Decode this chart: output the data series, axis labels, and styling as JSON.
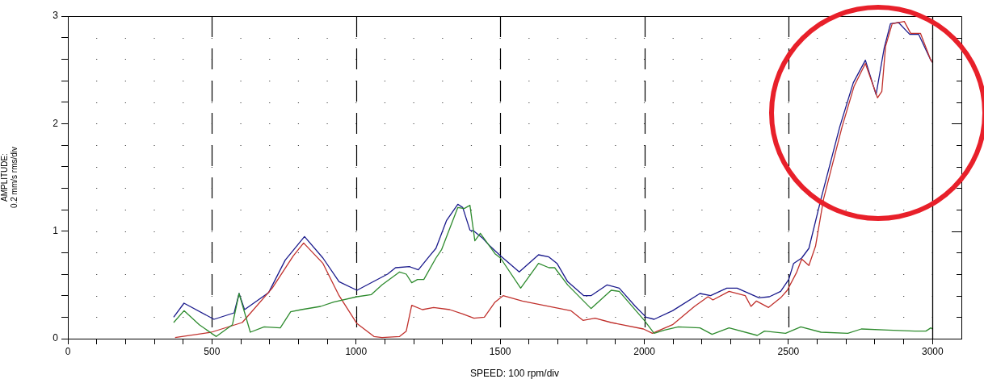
{
  "chart_data": {
    "type": "line",
    "xlabel": "SPEED: 100 rpm/div",
    "ylabel": "AMPLITUDE:\n0.2 mm/s rms/div",
    "xlim": [
      0,
      3100
    ],
    "ylim": [
      0,
      3
    ],
    "xticks": [
      0,
      {
        "value": 100,
        "label": null
      },
      {
        "value": 200,
        "label": null
      },
      {
        "value": 300,
        "label": null
      },
      {
        "value": 400,
        "label": null
      },
      500,
      {
        "value": 600,
        "label": null
      },
      {
        "value": 700,
        "label": null
      },
      {
        "value": 800,
        "label": null
      },
      {
        "value": 900,
        "label": null
      },
      1000,
      {
        "value": 1100,
        "label": null
      },
      {
        "value": 1200,
        "label": null
      },
      {
        "value": 1300,
        "label": null
      },
      {
        "value": 1400,
        "label": null
      },
      1500,
      {
        "value": 1600,
        "label": null
      },
      {
        "value": 1700,
        "label": null
      },
      {
        "value": 1800,
        "label": null
      },
      {
        "value": 1900,
        "label": null
      },
      2000,
      {
        "value": 2100,
        "label": null
      },
      {
        "value": 2200,
        "label": null
      },
      {
        "value": 2300,
        "label": null
      },
      {
        "value": 2400,
        "label": null
      },
      2500,
      {
        "value": 2600,
        "label": null
      },
      {
        "value": 2700,
        "label": null
      },
      {
        "value": 2800,
        "label": null
      },
      {
        "value": 2900,
        "label": null
      },
      3000
    ],
    "yticks": [
      0,
      {
        "value": 0.2,
        "label": null
      },
      {
        "value": 0.4,
        "label": null
      },
      {
        "value": 0.6,
        "label": null
      },
      {
        "value": 0.8,
        "label": null
      },
      1,
      {
        "value": 1.2,
        "label": null
      },
      {
        "value": 1.4,
        "label": null
      },
      {
        "value": 1.6,
        "label": null
      },
      {
        "value": 1.8,
        "label": null
      },
      2,
      {
        "value": 2.2,
        "label": null
      },
      {
        "value": 2.4,
        "label": null
      },
      {
        "value": 2.6,
        "label": null
      },
      {
        "value": 2.8,
        "label": null
      },
      3
    ],
    "grid": true,
    "ref_lines": [
      {
        "axis": "x",
        "value": 3000,
        "color": "#000000",
        "line_style": "solid"
      }
    ],
    "series": [
      {
        "color": "#2e8b2e",
        "x": [
          367,
          403,
          456,
          498,
          515,
          571,
          594,
          633,
          681,
          737,
          773,
          810,
          877,
          922,
          1003,
          1053,
          1090,
          1151,
          1174,
          1193,
          1213,
          1235,
          1277,
          1297,
          1353,
          1375,
          1395,
          1412,
          1431,
          1482,
          1501,
          1571,
          1633,
          1669,
          1689,
          1734,
          1815,
          1885,
          1913,
          2000,
          2034,
          2070,
          2118,
          2193,
          2235,
          2294,
          2392,
          2417,
          2490,
          2543,
          2613,
          2706,
          2753,
          2846,
          2938,
          2977,
          2994,
          3000
        ],
        "values": [
          0.15,
          0.26,
          0.13,
          0.05,
          0.02,
          0.13,
          0.42,
          0.06,
          0.11,
          0.1,
          0.25,
          0.27,
          0.3,
          0.34,
          0.39,
          0.41,
          0.5,
          0.62,
          0.6,
          0.52,
          0.55,
          0.55,
          0.75,
          0.83,
          1.22,
          1.21,
          1.24,
          0.91,
          0.98,
          0.79,
          0.75,
          0.47,
          0.7,
          0.66,
          0.66,
          0.5,
          0.28,
          0.45,
          0.44,
          0.17,
          0.05,
          0.08,
          0.11,
          0.1,
          0.04,
          0.1,
          0.03,
          0.07,
          0.05,
          0.11,
          0.06,
          0.05,
          0.09,
          0.08,
          0.07,
          0.07,
          0.1,
          0.09
        ]
      },
      {
        "color": "#c0302c",
        "x": [
          372,
          498,
          605,
          709,
          782,
          818,
          885,
          941,
          1003,
          1062,
          1090,
          1151,
          1174,
          1193,
          1230,
          1269,
          1325,
          1370,
          1409,
          1445,
          1482,
          1510,
          1577,
          1650,
          1745,
          1787,
          1829,
          1885,
          1997,
          2028,
          2098,
          2174,
          2221,
          2238,
          2294,
          2350,
          2370,
          2389,
          2431,
          2473,
          2496,
          2529,
          2546,
          2571,
          2594,
          2622,
          2686,
          2728,
          2767,
          2809,
          2824,
          2837,
          2860,
          2902,
          2924,
          2958,
          2994,
          3000
        ],
        "values": [
          0.01,
          0.06,
          0.15,
          0.47,
          0.77,
          0.89,
          0.7,
          0.4,
          0.14,
          0.02,
          0.01,
          0.02,
          0.07,
          0.31,
          0.27,
          0.29,
          0.27,
          0.23,
          0.19,
          0.2,
          0.34,
          0.4,
          0.35,
          0.31,
          0.26,
          0.17,
          0.19,
          0.15,
          0.09,
          0.05,
          0.13,
          0.3,
          0.39,
          0.36,
          0.44,
          0.4,
          0.3,
          0.35,
          0.29,
          0.38,
          0.45,
          0.62,
          0.74,
          0.68,
          0.86,
          1.3,
          1.97,
          2.35,
          2.56,
          2.24,
          2.3,
          2.72,
          2.93,
          2.95,
          2.84,
          2.84,
          2.59,
          2.57
        ]
      },
      {
        "color": "#1a1a8c",
        "x": [
          367,
          403,
          507,
          577,
          594,
          613,
          697,
          754,
          821,
          885,
          941,
          1003,
          1109,
          1137,
          1185,
          1216,
          1255,
          1277,
          1314,
          1353,
          1370,
          1395,
          1409,
          1437,
          1465,
          1501,
          1566,
          1633,
          1669,
          1697,
          1734,
          1790,
          1815,
          1871,
          1913,
          1969,
          2006,
          2034,
          2098,
          2193,
          2230,
          2286,
          2322,
          2398,
          2434,
          2473,
          2501,
          2518,
          2546,
          2571,
          2613,
          2678,
          2725,
          2767,
          2804,
          2832,
          2854,
          2882,
          2921,
          2952,
          2994,
          3000
        ],
        "values": [
          0.2,
          0.33,
          0.18,
          0.24,
          0.42,
          0.27,
          0.43,
          0.73,
          0.95,
          0.75,
          0.53,
          0.45,
          0.6,
          0.66,
          0.67,
          0.64,
          0.77,
          0.84,
          1.1,
          1.25,
          1.22,
          1.01,
          1.0,
          0.94,
          0.86,
          0.77,
          0.62,
          0.78,
          0.76,
          0.7,
          0.53,
          0.4,
          0.4,
          0.5,
          0.47,
          0.3,
          0.2,
          0.18,
          0.26,
          0.42,
          0.4,
          0.47,
          0.47,
          0.38,
          0.39,
          0.44,
          0.55,
          0.7,
          0.75,
          0.84,
          1.3,
          1.97,
          2.38,
          2.59,
          2.27,
          2.7,
          2.93,
          2.94,
          2.83,
          2.83,
          2.59,
          2.57
        ]
      }
    ]
  }
}
